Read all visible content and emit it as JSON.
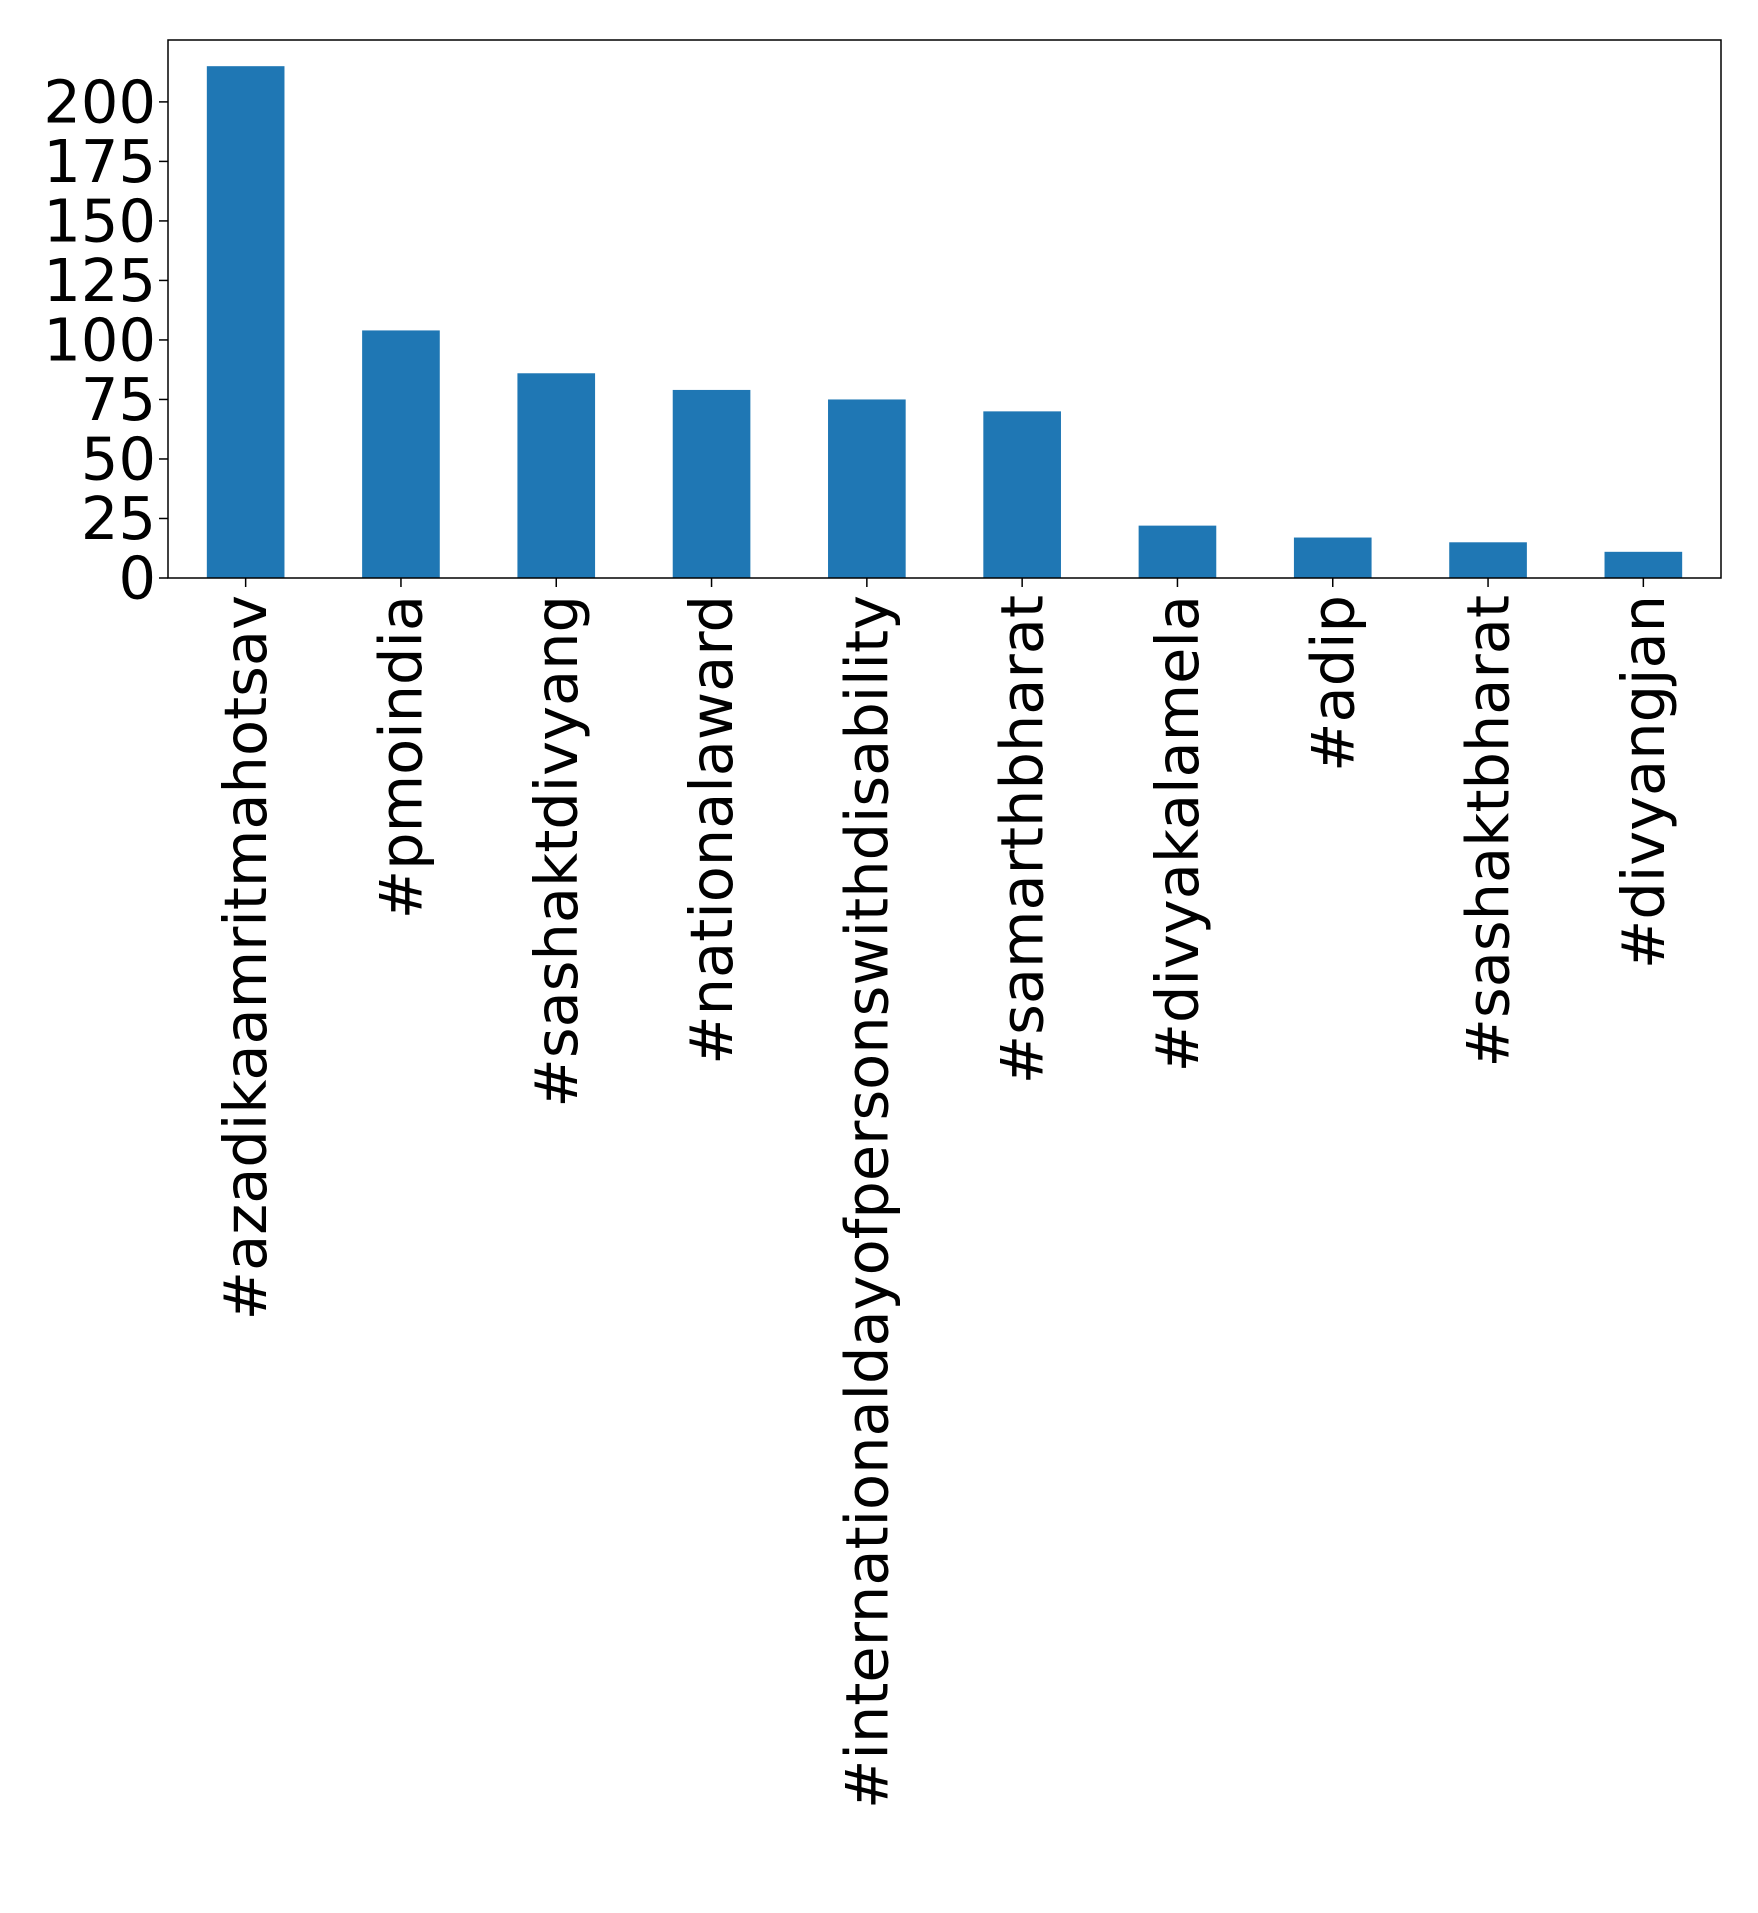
{
  "colors": {
    "bar": "#1f77b4",
    "axis": "#000000",
    "background": "#ffffff"
  },
  "chart_data": {
    "type": "bar",
    "title": "",
    "xlabel": "",
    "ylabel": "",
    "categories": [
      "#azadikaamritmahotsav",
      "#pmoindia",
      "#sashaktdivyang",
      "#nationalaward",
      "#internationaldayofpersonswithdisability",
      "#samarthbharat",
      "#divyakalamela",
      "#adip",
      "#sashaktbharat",
      "#divyangjan"
    ],
    "values": [
      215,
      104,
      86,
      79,
      75,
      70,
      22,
      17,
      15,
      11
    ],
    "ylim": [
      0,
      226
    ],
    "yticks": [
      0,
      25,
      50,
      75,
      100,
      125,
      150,
      175,
      200
    ],
    "grid": false,
    "legend": "none"
  }
}
